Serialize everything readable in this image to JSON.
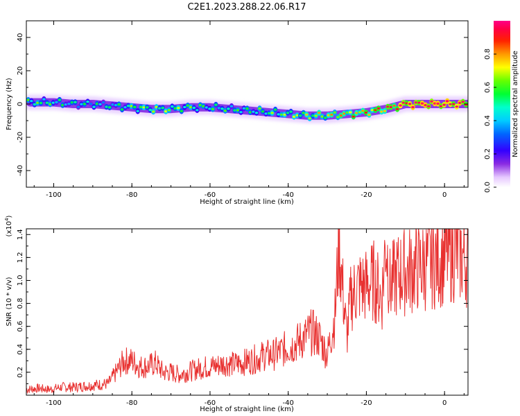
{
  "title": "C2E1.2023.288.22.06.R17",
  "chart_data": [
    {
      "type": "heatmap",
      "xlabel": "Height of straight line (km)",
      "ylabel": "Frequency (Hz)",
      "xlim": [
        -107,
        6
      ],
      "ylim": [
        -50,
        50
      ],
      "xticks": [
        -100,
        -80,
        -60,
        -40,
        -20,
        0
      ],
      "yticks": [
        -40,
        -20,
        0,
        20,
        40
      ],
      "colorbar": {
        "label": "Normalized spectral amplitude",
        "range": [
          0,
          1
        ],
        "ticks": [
          0.0,
          0.2,
          0.4,
          0.6,
          0.8
        ],
        "colormap": "rainbow (violet-blue-cyan-green-yellow-red-magenta)"
      },
      "ridge": {
        "x": [
          -106,
          -100,
          -95,
          -90,
          -85,
          -80,
          -75,
          -70,
          -65,
          -60,
          -55,
          -50,
          -45,
          -40,
          -35,
          -30,
          -25,
          -20,
          -15,
          -10,
          -5,
          0,
          6
        ],
        "frequency_hz": [
          1,
          1,
          0,
          0,
          -1,
          -2,
          -3,
          -3,
          -2,
          -2,
          -3,
          -4,
          -5,
          -6,
          -7,
          -7,
          -6,
          -5,
          -3,
          0,
          0,
          0,
          0
        ],
        "amplitude": [
          0.4,
          0.35,
          0.3,
          0.3,
          0.3,
          0.4,
          0.45,
          0.45,
          0.4,
          0.35,
          0.35,
          0.35,
          0.4,
          0.45,
          0.5,
          0.55,
          0.6,
          0.65,
          0.7,
          0.9,
          0.95,
          0.95,
          0.9
        ]
      }
    },
    {
      "type": "line",
      "xlabel": "Height of straight line (km)",
      "ylabel": "SNR (10 * v/v)",
      "yscale_label": "(x10",
      "yscale_exp": "4",
      "yscale_close": ")",
      "xlim": [
        -107,
        6
      ],
      "ylim": [
        0,
        1.45
      ],
      "xticks": [
        -100,
        -80,
        -60,
        -40,
        -20,
        0
      ],
      "yticks": [
        0.2,
        0.4,
        0.6,
        0.8,
        1.0,
        1.2,
        1.4
      ],
      "color": "#e8302f",
      "x": [
        -107,
        -104,
        -101,
        -98,
        -95,
        -92,
        -89,
        -86,
        -84,
        -82,
        -80,
        -78,
        -76,
        -74,
        -72,
        -70,
        -68,
        -66,
        -64,
        -62,
        -60,
        -58,
        -56,
        -54,
        -52,
        -50,
        -48,
        -46,
        -44,
        -42,
        -40,
        -38,
        -36,
        -34,
        -32,
        -30,
        -28,
        -27,
        -26,
        -25,
        -24,
        -22,
        -20,
        -18,
        -16,
        -15,
        -14,
        -12,
        -10,
        -8,
        -6,
        -4,
        -2,
        0,
        2,
        4,
        6
      ],
      "y": [
        0.05,
        0.06,
        0.05,
        0.07,
        0.07,
        0.08,
        0.09,
        0.1,
        0.2,
        0.3,
        0.3,
        0.25,
        0.25,
        0.28,
        0.2,
        0.2,
        0.18,
        0.2,
        0.22,
        0.24,
        0.25,
        0.26,
        0.28,
        0.27,
        0.28,
        0.3,
        0.32,
        0.35,
        0.35,
        0.38,
        0.42,
        0.45,
        0.5,
        0.55,
        0.5,
        0.35,
        0.7,
        1.35,
        0.9,
        0.5,
        0.85,
        0.95,
        0.95,
        1.0,
        0.85,
        1.38,
        0.95,
        1.05,
        1.08,
        1.1,
        1.12,
        1.15,
        1.18,
        1.2,
        1.25,
        1.22,
        1.18
      ]
    }
  ]
}
